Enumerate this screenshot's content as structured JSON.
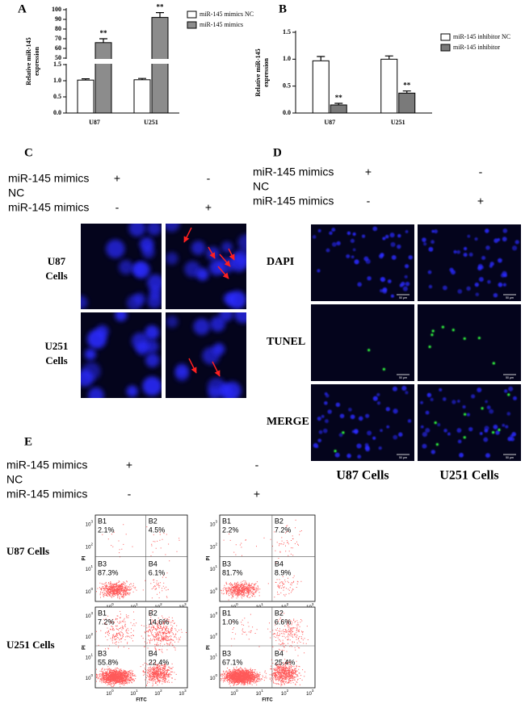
{
  "chart_data": [
    {
      "type": "bar",
      "label": "A",
      "ylabel": [
        "Relative miR-145",
        "expression"
      ],
      "categories": [
        "U87",
        "U251"
      ],
      "series": [
        {
          "name": "miR-145 mimics NC",
          "color": "#ffffff",
          "values": [
            1.02,
            1.03
          ],
          "errors": [
            0.04,
            0.04
          ]
        },
        {
          "name": "miR-145 mimics",
          "color": "#8c8c8c",
          "values": [
            66,
            92
          ],
          "errors": [
            4,
            5
          ],
          "annotations": [
            "**",
            "**"
          ]
        }
      ],
      "ylim": [
        0,
        100
      ],
      "ybreak": [
        1.5,
        50
      ],
      "yticks": [
        {
          "value": 0,
          "label": "0.0"
        },
        {
          "value": 0.5,
          "label": "0.5"
        },
        {
          "value": 1,
          "label": "1.0"
        },
        {
          "value": 1.5,
          "label": "1.5"
        },
        50,
        60,
        70,
        80,
        90,
        100
      ],
      "legend": "right"
    },
    {
      "type": "bar",
      "label": "B",
      "ylabel": [
        "Relative miR-145",
        "expression"
      ],
      "categories": [
        "U87",
        "U251"
      ],
      "series": [
        {
          "name": "miR-145 inhibitor NC",
          "color": "#ffffff",
          "values": [
            0.97,
            1.0
          ],
          "errors": [
            0.08,
            0.06
          ]
        },
        {
          "name": "miR-145 inhibitor",
          "color": "#7a7a7a",
          "values": [
            0.15,
            0.37
          ],
          "errors": [
            0.03,
            0.04
          ],
          "annotations": [
            "**",
            "**"
          ]
        }
      ],
      "ylim": [
        0,
        1.5
      ],
      "yticks": [
        {
          "value": 0,
          "label": "0.0"
        },
        {
          "value": 0.5,
          "label": "0.5"
        },
        {
          "value": 1,
          "label": "1.0"
        },
        {
          "value": 1.5,
          "label": "1.5"
        }
      ],
      "legend": "right"
    }
  ],
  "panels": {
    "C": {
      "label": "C",
      "treatments": [
        {
          "lines": [
            "miR-145 mimics",
            "NC"
          ],
          "signs": [
            "+",
            "-"
          ]
        },
        {
          "lines": [
            "miR-145 mimics"
          ],
          "signs": [
            "-",
            "+"
          ]
        }
      ],
      "rows": [
        [
          "U87",
          "Cells"
        ],
        [
          "U251",
          "Cells"
        ]
      ]
    },
    "D": {
      "label": "D",
      "treatments": [
        {
          "lines": [
            "miR-145 mimics",
            "NC"
          ],
          "signs": [
            "+",
            "-"
          ]
        },
        {
          "lines": [
            "miR-145 mimics"
          ],
          "signs": [
            "-",
            "+"
          ]
        }
      ],
      "rows": [
        "DAPI",
        "TUNEL",
        "MERGE"
      ],
      "columns": [
        "U87 Cells",
        "U251 Cells"
      ],
      "scale_bar": "50 μm"
    },
    "E": {
      "label": "E",
      "treatments": [
        {
          "lines": [
            "miR-145 mimics",
            "NC"
          ],
          "signs": [
            "+",
            "-"
          ]
        },
        {
          "lines": [
            "miR-145 mimics"
          ],
          "signs": [
            "-",
            "+"
          ]
        }
      ],
      "rows": [
        "U87 Cells",
        "U251 Cells"
      ],
      "x_axis": "FITC",
      "y_axis": "PI",
      "log_ticks": [
        {
          "base": "10",
          "exponent": "0"
        },
        {
          "base": "10",
          "exponent": "1"
        },
        {
          "base": "10",
          "exponent": "2"
        },
        {
          "base": "10",
          "exponent": "3"
        }
      ],
      "plots": [
        {
          "quadrants": [
            {
              "name": "B1",
              "value": "2.1%"
            },
            {
              "name": "B2",
              "value": "4.5%"
            },
            {
              "name": "B3",
              "value": "87.3%"
            },
            {
              "name": "B4",
              "value": "6.1%"
            }
          ]
        },
        {
          "quadrants": [
            {
              "name": "B1",
              "value": "2.2%"
            },
            {
              "name": "B2",
              "value": "7.2%"
            },
            {
              "name": "B3",
              "value": "81.7%"
            },
            {
              "name": "B4",
              "value": "8.9%"
            }
          ]
        },
        {
          "quadrants": [
            {
              "name": "B1",
              "value": "7.2%"
            },
            {
              "name": "B2",
              "value": "14.6%"
            },
            {
              "name": "B3",
              "value": "55.8%"
            },
            {
              "name": "B4",
              "value": "22.4%"
            }
          ]
        },
        {
          "quadrants": [
            {
              "name": "B1",
              "value": "1.0%"
            },
            {
              "name": "B2",
              "value": "6.6%"
            },
            {
              "name": "B3",
              "value": "67.1%"
            },
            {
              "name": "B4",
              "value": "25.4%"
            }
          ]
        }
      ]
    }
  }
}
